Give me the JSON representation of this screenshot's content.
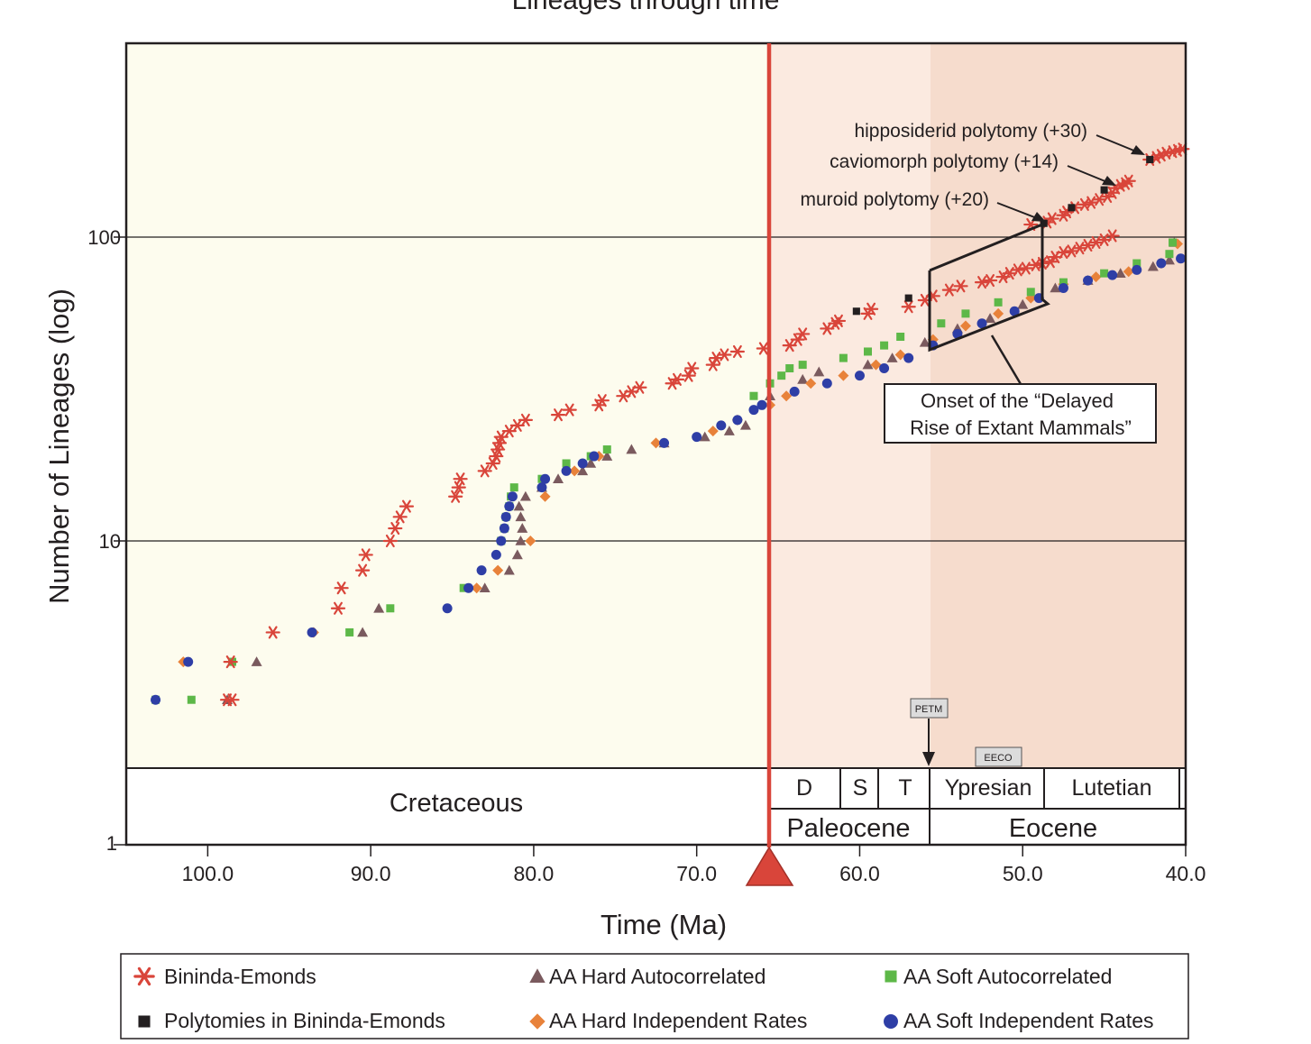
{
  "chart_data": {
    "type": "scatter",
    "title": "Lineages through time",
    "xlabel": "Time (Ma)",
    "ylabel": "Number of Lineages (log)",
    "x_reversed": true,
    "xlim": [
      105,
      40
    ],
    "ylim": [
      1,
      300
    ],
    "y_log": true,
    "x_ticks": [
      "100.0",
      "90.0",
      "80.0",
      "70.0",
      "60.0",
      "50.0",
      "40.0"
    ],
    "y_ticks": [
      "1",
      "10",
      "100"
    ],
    "colors": {
      "bininda": "#d9453a",
      "polytomy": "#231f20",
      "hard_auto": "#7a5a5e",
      "hard_indep": "#e8823a",
      "soft_auto": "#5db848",
      "soft_indep": "#2e3ea6",
      "kpg_line": "#d9453a",
      "cretaceous_bg": "#fdfcee",
      "paleocene_bg": "#fbeae0",
      "eocene_bg": "#f6dccd"
    },
    "kpg_boundary_ma": 66,
    "series": [
      {
        "name": "Bininda-Emonds",
        "marker": "asterisk",
        "points": [
          [
            98.5,
            3
          ],
          [
            98.8,
            3
          ],
          [
            98.6,
            4
          ],
          [
            96,
            5
          ],
          [
            92,
            6
          ],
          [
            91.8,
            7
          ],
          [
            90.5,
            8
          ],
          [
            90.3,
            9
          ],
          [
            88.8,
            10
          ],
          [
            88.5,
            11
          ],
          [
            88.2,
            12
          ],
          [
            87.8,
            13
          ],
          [
            84.8,
            14
          ],
          [
            84.6,
            15
          ],
          [
            84.5,
            16
          ],
          [
            83,
            17
          ],
          [
            82.5,
            18
          ],
          [
            82.3,
            19
          ],
          [
            82.2,
            20
          ],
          [
            82.1,
            21
          ],
          [
            82,
            22
          ],
          [
            81.5,
            23
          ],
          [
            81,
            24
          ],
          [
            80.5,
            25
          ],
          [
            78.5,
            26
          ],
          [
            77.8,
            27
          ],
          [
            76,
            28
          ],
          [
            75.8,
            29
          ],
          [
            74.5,
            30
          ],
          [
            74,
            31
          ],
          [
            73.5,
            32
          ],
          [
            71.5,
            33
          ],
          [
            71.2,
            34
          ],
          [
            70.5,
            35
          ],
          [
            70.3,
            37
          ],
          [
            69,
            38
          ],
          [
            68.8,
            40
          ],
          [
            68.3,
            41
          ],
          [
            67.5,
            42
          ],
          [
            65.9,
            43
          ],
          [
            64.3,
            44
          ],
          [
            63.8,
            46
          ],
          [
            63.5,
            48
          ],
          [
            62,
            50
          ],
          [
            61.5,
            52
          ],
          [
            61.3,
            53
          ],
          [
            59.5,
            56
          ],
          [
            59.3,
            58
          ],
          [
            57,
            59
          ],
          [
            56,
            62
          ],
          [
            55.5,
            64
          ],
          [
            54.5,
            67
          ],
          [
            53.8,
            69
          ],
          [
            52.5,
            71
          ],
          [
            52,
            72
          ],
          [
            51.2,
            74
          ],
          [
            50.8,
            76
          ],
          [
            50.3,
            78
          ],
          [
            49.8,
            79
          ],
          [
            49.2,
            81
          ],
          [
            48.8,
            82
          ],
          [
            48.3,
            83
          ],
          [
            48,
            86
          ],
          [
            47.5,
            89
          ],
          [
            47,
            90
          ],
          [
            46.5,
            92
          ],
          [
            46,
            94
          ],
          [
            45.5,
            96
          ],
          [
            45,
            98
          ],
          [
            44.5,
            101
          ],
          [
            49.5,
            110
          ],
          [
            48.5,
            112
          ],
          [
            48.2,
            115
          ],
          [
            47.5,
            118
          ],
          [
            47.3,
            121
          ],
          [
            46.8,
            125
          ],
          [
            46.2,
            128
          ],
          [
            45.8,
            130
          ],
          [
            45.3,
            133
          ],
          [
            44.8,
            136
          ],
          [
            44.5,
            140
          ],
          [
            44.3,
            145
          ],
          [
            44,
            148
          ],
          [
            43.7,
            150
          ],
          [
            43.5,
            153
          ],
          [
            42.2,
            180
          ],
          [
            41.8,
            183
          ],
          [
            41.5,
            186
          ],
          [
            41.2,
            189
          ],
          [
            40.8,
            191
          ],
          [
            40.5,
            193
          ],
          [
            40.2,
            195
          ]
        ]
      },
      {
        "name": "Polytomies in Bininda-Emonds",
        "marker": "square",
        "points": [
          [
            60.2,
            57
          ],
          [
            57,
            63
          ],
          [
            48.7,
            111
          ],
          [
            47,
            125
          ],
          [
            45,
            143
          ],
          [
            42.2,
            180
          ]
        ]
      },
      {
        "name": "AA Hard Autocorrelated",
        "marker": "triangle",
        "points": [
          [
            98.8,
            3
          ],
          [
            97,
            4
          ],
          [
            90.5,
            5
          ],
          [
            89.5,
            6
          ],
          [
            83,
            7
          ],
          [
            81.5,
            8
          ],
          [
            81,
            9
          ],
          [
            80.8,
            10
          ],
          [
            80.7,
            11
          ],
          [
            80.8,
            12
          ],
          [
            80.9,
            13
          ],
          [
            80.5,
            14
          ],
          [
            79.5,
            15
          ],
          [
            78.5,
            16
          ],
          [
            77,
            17
          ],
          [
            76.5,
            18
          ],
          [
            75.5,
            19
          ],
          [
            74,
            20
          ],
          [
            72,
            21
          ],
          [
            69.5,
            22
          ],
          [
            68,
            23
          ],
          [
            67,
            24
          ],
          [
            65.5,
            30
          ],
          [
            63.5,
            34
          ],
          [
            62.5,
            36
          ],
          [
            59.5,
            38
          ],
          [
            58,
            40
          ],
          [
            56,
            45
          ],
          [
            54,
            50
          ],
          [
            52,
            54
          ],
          [
            50,
            60
          ],
          [
            48,
            68
          ],
          [
            46,
            72
          ],
          [
            44,
            76
          ],
          [
            42,
            80
          ],
          [
            41,
            84
          ],
          [
            40.7,
            96
          ]
        ]
      },
      {
        "name": "AA Hard Independent Rates",
        "marker": "diamond",
        "points": [
          [
            101.5,
            4
          ],
          [
            93.5,
            5
          ],
          [
            83.5,
            7
          ],
          [
            82.2,
            8
          ],
          [
            80.2,
            10
          ],
          [
            79.3,
            14
          ],
          [
            77.5,
            17
          ],
          [
            76,
            19
          ],
          [
            72.5,
            21
          ],
          [
            69,
            23
          ],
          [
            67.5,
            25
          ],
          [
            65.5,
            28
          ],
          [
            64.5,
            30
          ],
          [
            63,
            33
          ],
          [
            61,
            35
          ],
          [
            59,
            38
          ],
          [
            57.5,
            41
          ],
          [
            55.5,
            46
          ],
          [
            53.5,
            51
          ],
          [
            51.5,
            56
          ],
          [
            49.5,
            63
          ],
          [
            47.5,
            70
          ],
          [
            45.5,
            74
          ],
          [
            43.5,
            77
          ],
          [
            41.5,
            82
          ],
          [
            40.5,
            95
          ]
        ]
      },
      {
        "name": "AA Soft Autocorrelated",
        "marker": "square",
        "points": [
          [
            103.2,
            3
          ],
          [
            101,
            3
          ],
          [
            98.5,
            4
          ],
          [
            91.3,
            5
          ],
          [
            88.8,
            6
          ],
          [
            84.3,
            7
          ],
          [
            82,
            10
          ],
          [
            81.8,
            11
          ],
          [
            81.7,
            12
          ],
          [
            81.5,
            13
          ],
          [
            81.4,
            14
          ],
          [
            81.2,
            15
          ],
          [
            79.5,
            16
          ],
          [
            78,
            18
          ],
          [
            76.5,
            19
          ],
          [
            75.5,
            20
          ],
          [
            66.5,
            30
          ],
          [
            65.5,
            33
          ],
          [
            64.8,
            35
          ],
          [
            64.3,
            37
          ],
          [
            63.5,
            38
          ],
          [
            61,
            40
          ],
          [
            59.5,
            42
          ],
          [
            58.5,
            44
          ],
          [
            57.5,
            47
          ],
          [
            55,
            52
          ],
          [
            53.5,
            56
          ],
          [
            51.5,
            61
          ],
          [
            49.5,
            66
          ],
          [
            47.5,
            71
          ],
          [
            45,
            76
          ],
          [
            43,
            82
          ],
          [
            41,
            88
          ],
          [
            40.8,
            96
          ]
        ]
      },
      {
        "name": "AA Soft Independent Rates",
        "marker": "circle",
        "points": [
          [
            103.2,
            3
          ],
          [
            101.2,
            4
          ],
          [
            93.6,
            5
          ],
          [
            85.3,
            6
          ],
          [
            84,
            7
          ],
          [
            83.2,
            8
          ],
          [
            82.3,
            9
          ],
          [
            82,
            10
          ],
          [
            81.8,
            11
          ],
          [
            81.7,
            12
          ],
          [
            81.5,
            13
          ],
          [
            81.3,
            14
          ],
          [
            79.5,
            15
          ],
          [
            79.3,
            16
          ],
          [
            78,
            17
          ],
          [
            77,
            18
          ],
          [
            76.3,
            19
          ],
          [
            72,
            21
          ],
          [
            70,
            22
          ],
          [
            68.5,
            24
          ],
          [
            67.5,
            25
          ],
          [
            66.5,
            27
          ],
          [
            66,
            28
          ],
          [
            64,
            31
          ],
          [
            62,
            33
          ],
          [
            60,
            35
          ],
          [
            58.5,
            37
          ],
          [
            57,
            40
          ],
          [
            55.5,
            44
          ],
          [
            54,
            48
          ],
          [
            52.5,
            52
          ],
          [
            50.5,
            57
          ],
          [
            49,
            63
          ],
          [
            47.5,
            68
          ],
          [
            46,
            72
          ],
          [
            44.5,
            75
          ],
          [
            43,
            78
          ],
          [
            41.5,
            82
          ],
          [
            40.3,
            85
          ]
        ]
      }
    ],
    "annotations": {
      "hipposiderid": "hipposiderid polytomy (+30)",
      "caviomorph": "caviomorph polytomy (+14)",
      "muroid": "muroid polytomy (+20)",
      "onset_line1": "Onset of the “Delayed",
      "onset_line2": "Rise of Extant Mammals”",
      "petm": "PETM",
      "eeco": "EECO"
    },
    "timescale": {
      "cretaceous": "Cretaceous",
      "danian": "D",
      "selandian": "S",
      "thanetian": "T",
      "ypresian": "Ypresian",
      "lutetian": "Lutetian",
      "paleocene": "Paleocene",
      "eocene": "Eocene"
    },
    "legend": [
      "Bininda-Emonds",
      "AA Hard Autocorrelated",
      "AA Soft Autocorrelated",
      "Polytomies in Bininda-Emonds",
      "AA Hard Independent Rates",
      "AA Soft Independent Rates"
    ]
  }
}
